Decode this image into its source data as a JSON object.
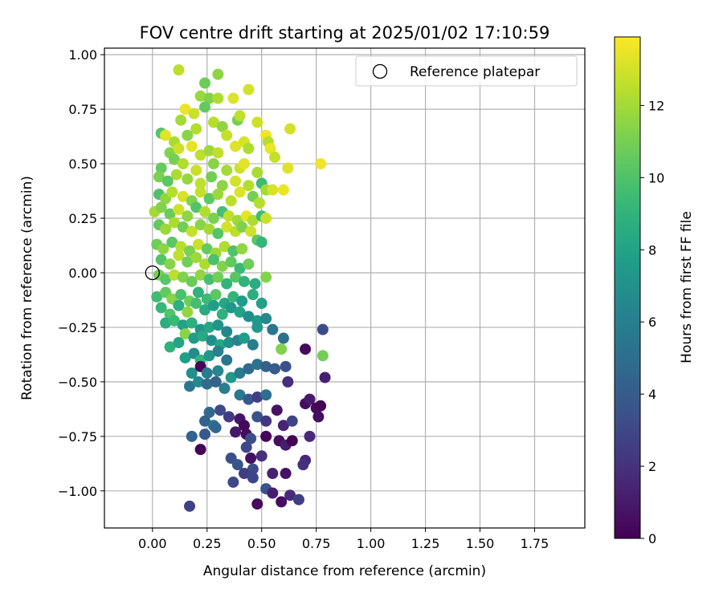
{
  "chart_data": {
    "type": "scatter",
    "title": "FOV centre drift starting at 2025/01/02 17:10:59",
    "xlabel": "Angular distance from reference (arcmin)",
    "ylabel": "Rotation from reference (arcmin)",
    "xlim": [
      -0.22,
      1.98
    ],
    "ylim": [
      -1.17,
      1.03
    ],
    "x_ticks": [
      0.0,
      0.25,
      0.5,
      0.75,
      1.0,
      1.25,
      1.5,
      1.75
    ],
    "x_tick_labels": [
      "0.00",
      "0.25",
      "0.50",
      "0.75",
      "1.00",
      "1.25",
      "1.50",
      "1.75"
    ],
    "y_ticks": [
      -1.0,
      -0.75,
      -0.5,
      -0.25,
      0.0,
      0.25,
      0.5,
      0.75,
      1.0
    ],
    "y_tick_labels": [
      "−1.00",
      "−0.75",
      "−0.50",
      "−0.25",
      "0.00",
      "0.25",
      "0.50",
      "0.75",
      "1.00"
    ],
    "grid": true,
    "legend": {
      "placement": "upper-right",
      "entries": [
        "Reference platepar"
      ]
    },
    "reference_point": {
      "x": 0.0,
      "y": 0.0,
      "label": "Reference platepar"
    },
    "colorbar": {
      "label": "Hours from first FF file",
      "colormap": "viridis",
      "range": [
        0,
        13.9
      ],
      "ticks": [
        0,
        2,
        4,
        6,
        8,
        10,
        12
      ],
      "tick_labels": [
        "0",
        "2",
        "4",
        "6",
        "8",
        "10",
        "12"
      ]
    },
    "points_xyc": [
      [
        0.12,
        0.93,
        12.5
      ],
      [
        0.3,
        0.91,
        11.5
      ],
      [
        0.24,
        0.87,
        10.8
      ],
      [
        0.44,
        0.84,
        13.0
      ],
      [
        0.22,
        0.81,
        11.8
      ],
      [
        0.26,
        0.8,
        11.2
      ],
      [
        0.3,
        0.8,
        12.2
      ],
      [
        0.37,
        0.8,
        13.2
      ],
      [
        0.15,
        0.75,
        13.5
      ],
      [
        0.19,
        0.73,
        12.8
      ],
      [
        0.24,
        0.76,
        10.5
      ],
      [
        0.13,
        0.7,
        12.0
      ],
      [
        0.39,
        0.7,
        11.0
      ],
      [
        0.4,
        0.72,
        12.6
      ],
      [
        0.28,
        0.69,
        12.4
      ],
      [
        0.32,
        0.67,
        11.6
      ],
      [
        0.48,
        0.69,
        12.9
      ],
      [
        0.04,
        0.64,
        10.2
      ],
      [
        0.1,
        0.6,
        12.1
      ],
      [
        0.06,
        0.63,
        13.3
      ],
      [
        0.16,
        0.63,
        11.4
      ],
      [
        0.2,
        0.66,
        12.3
      ],
      [
        0.34,
        0.63,
        12.7
      ],
      [
        0.42,
        0.6,
        13.1
      ],
      [
        0.52,
        0.63,
        13.6
      ],
      [
        0.53,
        0.6,
        12.4
      ],
      [
        0.63,
        0.66,
        13.0
      ],
      [
        0.08,
        0.55,
        11.3
      ],
      [
        0.12,
        0.57,
        12.9
      ],
      [
        0.18,
        0.58,
        13.4
      ],
      [
        0.22,
        0.54,
        12.5
      ],
      [
        0.26,
        0.56,
        11.9
      ],
      [
        0.3,
        0.55,
        12.6
      ],
      [
        0.38,
        0.58,
        13.2
      ],
      [
        0.44,
        0.57,
        12.2
      ],
      [
        0.54,
        0.57,
        13.5
      ],
      [
        0.56,
        0.53,
        12.7
      ],
      [
        0.04,
        0.48,
        10.6
      ],
      [
        0.1,
        0.52,
        11.0
      ],
      [
        0.14,
        0.5,
        12.3
      ],
      [
        0.2,
        0.47,
        12.8
      ],
      [
        0.28,
        0.5,
        11.4
      ],
      [
        0.34,
        0.47,
        12.0
      ],
      [
        0.4,
        0.48,
        12.9
      ],
      [
        0.42,
        0.5,
        13.3
      ],
      [
        0.48,
        0.46,
        12.1
      ],
      [
        0.62,
        0.48,
        13.2
      ],
      [
        0.77,
        0.5,
        13.6
      ],
      [
        0.03,
        0.44,
        11.1
      ],
      [
        0.07,
        0.42,
        10.3
      ],
      [
        0.11,
        0.45,
        12.2
      ],
      [
        0.16,
        0.43,
        11.7
      ],
      [
        0.22,
        0.41,
        12.6
      ],
      [
        0.27,
        0.44,
        10.9
      ],
      [
        0.32,
        0.4,
        11.5
      ],
      [
        0.38,
        0.42,
        13.0
      ],
      [
        0.44,
        0.4,
        12.3
      ],
      [
        0.5,
        0.41,
        9.5
      ],
      [
        0.52,
        0.38,
        12.0
      ],
      [
        0.55,
        0.38,
        13.1
      ],
      [
        0.6,
        0.38,
        13.5
      ],
      [
        0.03,
        0.36,
        10.0
      ],
      [
        0.06,
        0.34,
        11.6
      ],
      [
        0.09,
        0.37,
        12.4
      ],
      [
        0.14,
        0.35,
        13.1
      ],
      [
        0.18,
        0.33,
        11.2
      ],
      [
        0.22,
        0.37,
        12.7
      ],
      [
        0.26,
        0.34,
        10.4
      ],
      [
        0.3,
        0.36,
        11.8
      ],
      [
        0.36,
        0.33,
        12.5
      ],
      [
        0.4,
        0.37,
        13.2
      ],
      [
        0.46,
        0.35,
        11.0
      ],
      [
        0.49,
        0.32,
        12.4
      ],
      [
        0.01,
        0.28,
        12.0
      ],
      [
        0.04,
        0.3,
        11.3
      ],
      [
        0.08,
        0.27,
        10.7
      ],
      [
        0.12,
        0.29,
        12.9
      ],
      [
        0.16,
        0.26,
        11.5
      ],
      [
        0.2,
        0.3,
        10.1
      ],
      [
        0.24,
        0.28,
        12.3
      ],
      [
        0.28,
        0.25,
        11.1
      ],
      [
        0.32,
        0.28,
        9.8
      ],
      [
        0.35,
        0.26,
        12.6
      ],
      [
        0.39,
        0.24,
        11.9
      ],
      [
        0.43,
        0.26,
        13.4
      ],
      [
        0.46,
        0.24,
        12.2
      ],
      [
        0.5,
        0.26,
        9.6
      ],
      [
        0.52,
        0.25,
        12.8
      ],
      [
        0.03,
        0.22,
        10.5
      ],
      [
        0.06,
        0.2,
        11.8
      ],
      [
        0.1,
        0.23,
        12.2
      ],
      [
        0.14,
        0.21,
        10.9
      ],
      [
        0.18,
        0.19,
        12.7
      ],
      [
        0.22,
        0.22,
        11.4
      ],
      [
        0.26,
        0.2,
        12.0
      ],
      [
        0.3,
        0.18,
        10.2
      ],
      [
        0.34,
        0.21,
        13.0
      ],
      [
        0.38,
        0.19,
        12.5
      ],
      [
        0.41,
        0.21,
        11.2
      ],
      [
        0.45,
        0.19,
        12.9
      ],
      [
        0.48,
        0.15,
        10.4
      ],
      [
        0.5,
        0.14,
        9.2
      ],
      [
        0.02,
        0.13,
        10.8
      ],
      [
        0.05,
        0.11,
        11.5
      ],
      [
        0.09,
        0.14,
        10.3
      ],
      [
        0.13,
        0.12,
        12.4
      ],
      [
        0.17,
        0.1,
        11.1
      ],
      [
        0.21,
        0.13,
        12.8
      ],
      [
        0.25,
        0.11,
        10.6
      ],
      [
        0.29,
        0.09,
        11.9
      ],
      [
        0.33,
        0.12,
        12.3
      ],
      [
        0.37,
        0.1,
        10.0
      ],
      [
        0.41,
        0.11,
        11.6
      ],
      [
        0.04,
        0.06,
        10.1
      ],
      [
        0.08,
        0.04,
        11.4
      ],
      [
        0.12,
        0.08,
        12.6
      ],
      [
        0.16,
        0.05,
        10.9
      ],
      [
        0.2,
        0.07,
        11.8
      ],
      [
        0.24,
        0.04,
        12.2
      ],
      [
        0.28,
        0.06,
        9.9
      ],
      [
        0.32,
        0.03,
        11.3
      ],
      [
        0.36,
        0.05,
        10.5
      ],
      [
        0.4,
        0.02,
        9.4
      ],
      [
        0.44,
        0.04,
        10.8
      ],
      [
        0.03,
        -0.01,
        11.0
      ],
      [
        0.06,
        -0.03,
        10.3
      ],
      [
        0.1,
        -0.01,
        12.5
      ],
      [
        0.14,
        -0.02,
        11.2
      ],
      [
        0.18,
        -0.04,
        10.7
      ],
      [
        0.22,
        -0.01,
        11.6
      ],
      [
        0.26,
        -0.03,
        9.8
      ],
      [
        0.3,
        -0.02,
        10.9
      ],
      [
        0.34,
        -0.05,
        9.1
      ],
      [
        0.38,
        -0.02,
        10.2
      ],
      [
        0.42,
        -0.04,
        9.0
      ],
      [
        0.47,
        -0.05,
        8.6
      ],
      [
        0.52,
        -0.02,
        11.3
      ],
      [
        0.02,
        -0.11,
        9.6
      ],
      [
        0.06,
        -0.09,
        10.5
      ],
      [
        0.09,
        -0.12,
        11.4
      ],
      [
        0.13,
        -0.1,
        9.9
      ],
      [
        0.17,
        -0.13,
        10.8
      ],
      [
        0.21,
        -0.09,
        8.9
      ],
      [
        0.25,
        -0.12,
        9.5
      ],
      [
        0.29,
        -0.1,
        10.3
      ],
      [
        0.33,
        -0.14,
        8.2
      ],
      [
        0.37,
        -0.11,
        9.1
      ],
      [
        0.41,
        -0.13,
        7.6
      ],
      [
        0.46,
        -0.1,
        8.7
      ],
      [
        0.5,
        -0.14,
        7.9
      ],
      [
        0.04,
        -0.16,
        9.3
      ],
      [
        0.08,
        -0.19,
        10.1
      ],
      [
        0.12,
        -0.15,
        8.8
      ],
      [
        0.16,
        -0.18,
        11.6
      ],
      [
        0.2,
        -0.14,
        9.7
      ],
      [
        0.24,
        -0.17,
        8.5
      ],
      [
        0.28,
        -0.15,
        7.8
      ],
      [
        0.32,
        -0.19,
        8.9
      ],
      [
        0.36,
        -0.16,
        7.3
      ],
      [
        0.4,
        -0.18,
        8.0
      ],
      [
        0.44,
        -0.2,
        6.8
      ],
      [
        0.48,
        -0.22,
        7.5
      ],
      [
        0.52,
        -0.21,
        6.5
      ],
      [
        0.06,
        -0.23,
        8.6
      ],
      [
        0.1,
        -0.22,
        9.4
      ],
      [
        0.14,
        -0.24,
        7.9
      ],
      [
        0.18,
        -0.23,
        8.8
      ],
      [
        0.22,
        -0.26,
        7.2
      ],
      [
        0.26,
        -0.25,
        8.3
      ],
      [
        0.3,
        -0.24,
        7.1
      ],
      [
        0.34,
        -0.27,
        6.4
      ],
      [
        0.48,
        -0.25,
        7.4
      ],
      [
        0.55,
        -0.26,
        5.5
      ],
      [
        0.08,
        -0.34,
        8.9
      ],
      [
        0.12,
        -0.32,
        8.1
      ],
      [
        0.15,
        -0.28,
        11.4
      ],
      [
        0.19,
        -0.3,
        7.6
      ],
      [
        0.23,
        -0.29,
        8.4
      ],
      [
        0.27,
        -0.31,
        6.9
      ],
      [
        0.31,
        -0.33,
        8.2
      ],
      [
        0.35,
        -0.32,
        7.0
      ],
      [
        0.39,
        -0.31,
        6.3
      ],
      [
        0.42,
        -0.3,
        7.7
      ],
      [
        0.46,
        -0.33,
        5.9
      ],
      [
        0.6,
        -0.3,
        5.1
      ],
      [
        0.59,
        -0.35,
        11.2
      ],
      [
        0.7,
        -0.35,
        0.4
      ],
      [
        0.78,
        -0.38,
        10.9
      ],
      [
        0.78,
        -0.26,
        3.2
      ],
      [
        0.15,
        -0.39,
        7.8
      ],
      [
        0.19,
        -0.37,
        6.6
      ],
      [
        0.22,
        -0.4,
        9.0
      ],
      [
        0.26,
        -0.38,
        7.3
      ],
      [
        0.3,
        -0.36,
        6.1
      ],
      [
        0.34,
        -0.4,
        5.4
      ],
      [
        0.18,
        -0.46,
        6.9
      ],
      [
        0.22,
        -0.43,
        0.2
      ],
      [
        0.25,
        -0.46,
        5.8
      ],
      [
        0.3,
        -0.45,
        6.4
      ],
      [
        0.36,
        -0.48,
        7.4
      ],
      [
        0.4,
        -0.46,
        5.7
      ],
      [
        0.44,
        -0.44,
        4.8
      ],
      [
        0.48,
        -0.42,
        5.2
      ],
      [
        0.52,
        -0.43,
        4.4
      ],
      [
        0.56,
        -0.44,
        3.9
      ],
      [
        0.61,
        -0.43,
        3.5
      ],
      [
        0.79,
        -0.48,
        1.2
      ],
      [
        0.17,
        -0.52,
        5.4
      ],
      [
        0.21,
        -0.5,
        6.5
      ],
      [
        0.25,
        -0.51,
        4.9
      ],
      [
        0.29,
        -0.5,
        4.3
      ],
      [
        0.33,
        -0.53,
        5.9
      ],
      [
        0.4,
        -0.56,
        5.6
      ],
      [
        0.44,
        -0.58,
        3.8
      ],
      [
        0.48,
        -0.57,
        2.6
      ],
      [
        0.52,
        -0.56,
        5.0
      ],
      [
        0.62,
        -0.5,
        1.8
      ],
      [
        0.7,
        -0.6,
        0.6
      ],
      [
        0.72,
        -0.58,
        1.0
      ],
      [
        0.75,
        -0.62,
        0.3
      ],
      [
        0.77,
        -0.61,
        0.1
      ],
      [
        0.76,
        -0.66,
        0.5
      ],
      [
        0.26,
        -0.64,
        4.7
      ],
      [
        0.31,
        -0.63,
        3.1
      ],
      [
        0.35,
        -0.66,
        2.4
      ],
      [
        0.24,
        -0.68,
        4.2
      ],
      [
        0.28,
        -0.7,
        5.1
      ],
      [
        0.4,
        -0.67,
        0.8
      ],
      [
        0.42,
        -0.7,
        0.3
      ],
      [
        0.48,
        -0.66,
        3.6
      ],
      [
        0.52,
        -0.68,
        2.2
      ],
      [
        0.57,
        -0.63,
        0.7
      ],
      [
        0.6,
        -0.7,
        1.4
      ],
      [
        0.64,
        -0.68,
        2.8
      ],
      [
        0.18,
        -0.75,
        4.4
      ],
      [
        0.24,
        -0.74,
        3.9
      ],
      [
        0.29,
        -0.71,
        4.6
      ],
      [
        0.38,
        -0.73,
        0.9
      ],
      [
        0.43,
        -0.74,
        0.4
      ],
      [
        0.45,
        -0.76,
        3.3
      ],
      [
        0.52,
        -0.75,
        0.2
      ],
      [
        0.58,
        -0.77,
        0.5
      ],
      [
        0.61,
        -0.79,
        1.1
      ],
      [
        0.64,
        -0.77,
        0.0
      ],
      [
        0.72,
        -0.75,
        1.6
      ],
      [
        0.22,
        -0.81,
        0.1
      ],
      [
        0.43,
        -0.8,
        3.0
      ],
      [
        0.45,
        -0.85,
        0.6
      ],
      [
        0.5,
        -0.84,
        1.9
      ],
      [
        0.36,
        -0.85,
        3.4
      ],
      [
        0.39,
        -0.88,
        3.7
      ],
      [
        0.46,
        -0.9,
        3.2
      ],
      [
        0.55,
        -0.92,
        1.3
      ],
      [
        0.61,
        -0.92,
        0.7
      ],
      [
        0.7,
        -0.86,
        1.5
      ],
      [
        0.69,
        -0.88,
        2.0
      ],
      [
        0.37,
        -0.96,
        3.0
      ],
      [
        0.42,
        -0.92,
        2.5
      ],
      [
        0.46,
        -0.94,
        2.9
      ],
      [
        0.52,
        -0.99,
        3.5
      ],
      [
        0.55,
        -1.01,
        1.2
      ],
      [
        0.59,
        -1.05,
        0.5
      ],
      [
        0.63,
        -1.02,
        1.7
      ],
      [
        0.67,
        -1.04,
        2.6
      ],
      [
        0.48,
        -1.06,
        0.4
      ],
      [
        0.17,
        -1.07,
        2.7
      ]
    ]
  }
}
